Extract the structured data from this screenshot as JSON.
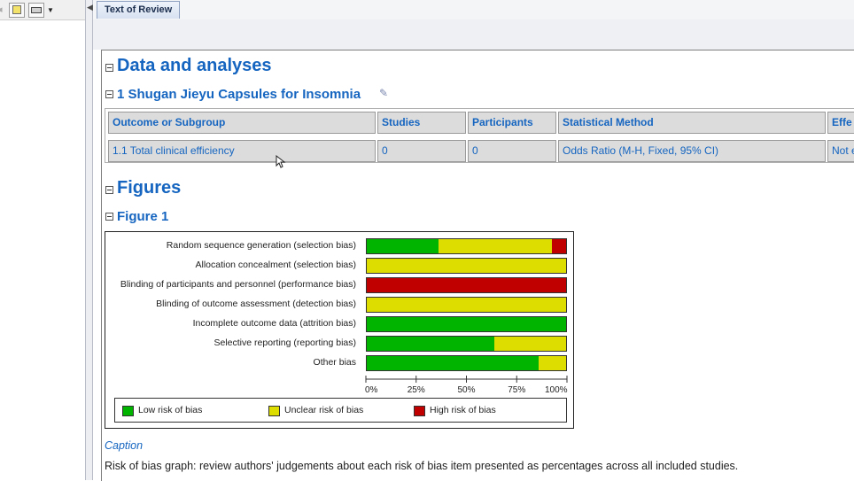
{
  "tabs": [
    {
      "label": "Text of Review"
    }
  ],
  "sections": {
    "data_and_analyses": {
      "title": "Data and analyses",
      "comparison_title": "1 Shugan Jieyu Capsules for Insomnia",
      "table": {
        "headers": [
          "Outcome or Subgroup",
          "Studies",
          "Participants",
          "Statistical Method",
          "Effe"
        ],
        "rows": [
          [
            "1.1 Total clinical efficiency",
            "0",
            "0",
            "Odds Ratio (M-H, Fixed, 95% CI)",
            "Not e"
          ]
        ]
      }
    },
    "figures": {
      "title": "Figures",
      "figure1": {
        "title": "Figure 1",
        "caption_label": "Caption",
        "caption_text": "Risk of bias graph: review authors' judgements about each risk of bias item presented as percentages across all included studies."
      }
    }
  },
  "chart_data": {
    "type": "bar",
    "orientation": "horizontal-stacked-100",
    "categories": [
      "Random sequence generation (selection bias)",
      "Allocation concealment (selection bias)",
      "Blinding of participants and personnel (performance bias)",
      "Blinding of outcome assessment (detection bias)",
      "Incomplete outcome data (attrition bias)",
      "Selective reporting (reporting bias)",
      "Other bias"
    ],
    "series": [
      {
        "name": "Low risk of bias",
        "color": "#00b400",
        "values": [
          36,
          0,
          0,
          0,
          100,
          64,
          86
        ]
      },
      {
        "name": "Unclear risk of bias",
        "color": "#dddd00",
        "values": [
          57,
          100,
          0,
          100,
          0,
          36,
          14
        ]
      },
      {
        "name": "High risk of bias",
        "color": "#c00000",
        "values": [
          7,
          0,
          100,
          0,
          0,
          0,
          0
        ]
      }
    ],
    "xticks": [
      "0%",
      "25%",
      "50%",
      "75%",
      "100%"
    ],
    "xlim": [
      0,
      100
    ],
    "legend_position": "bottom"
  }
}
